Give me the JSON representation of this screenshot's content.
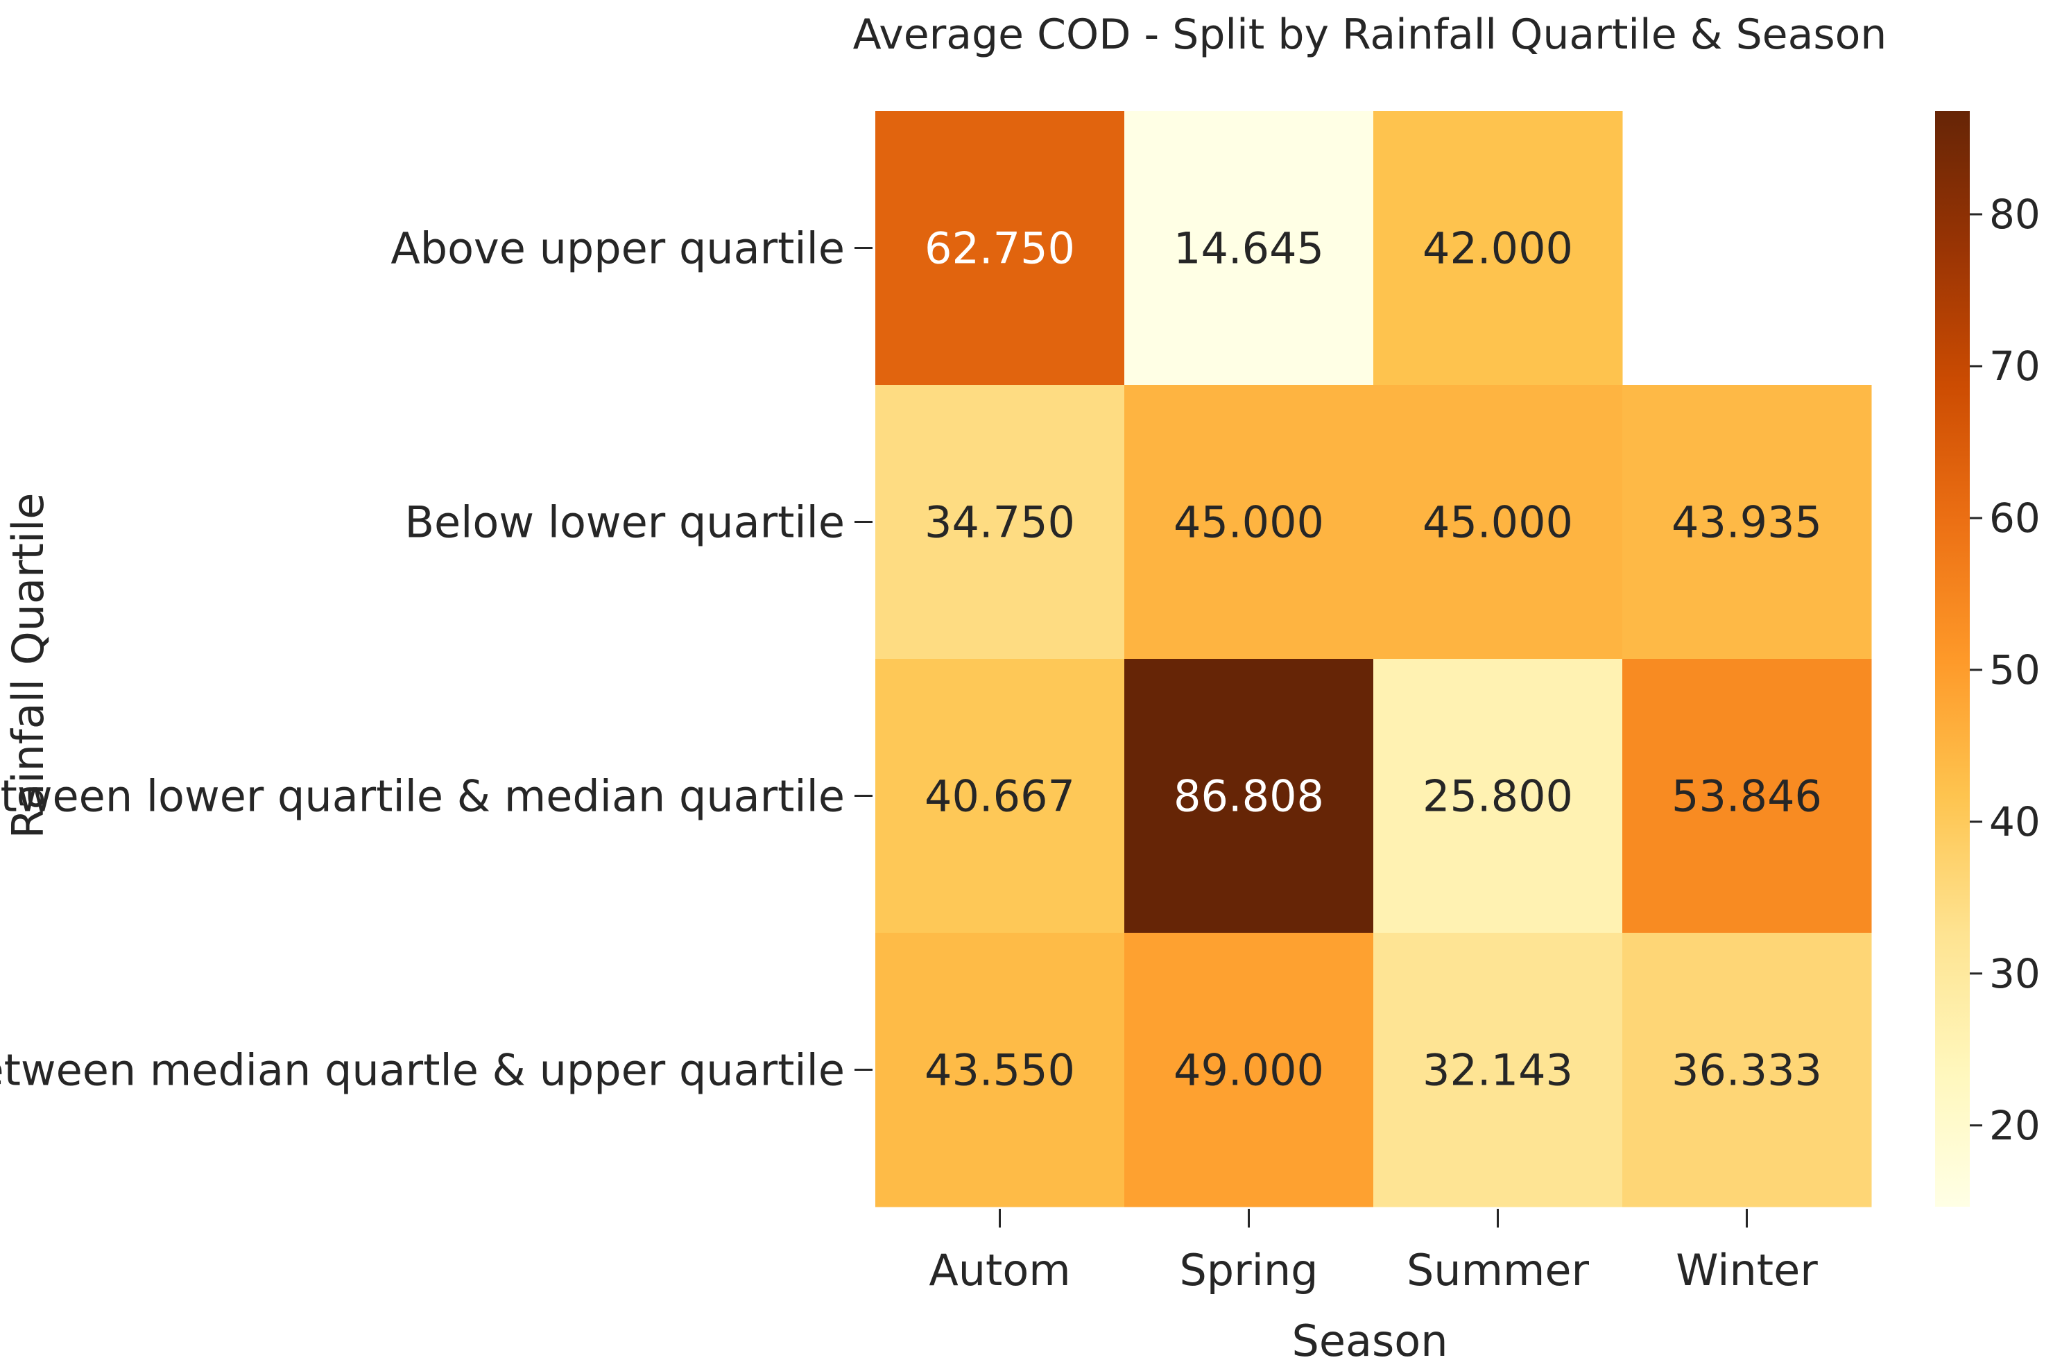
{
  "chart_data": {
    "type": "heatmap",
    "title": "Average COD - Split by Rainfall Quartile & Season",
    "xlabel": "Season",
    "ylabel": "Rainfall Quartile",
    "x_categories": [
      "Autom",
      "Spring",
      "Summer",
      "Winter"
    ],
    "y_categories": [
      "Above upper quartile",
      "Below lower quartile",
      "Between lower quartile & median quartile",
      "Between median quartle & upper quartile"
    ],
    "values": [
      [
        62.75,
        14.645,
        42.0,
        null
      ],
      [
        34.75,
        45.0,
        45.0,
        43.935
      ],
      [
        40.667,
        86.808,
        25.8,
        53.846
      ],
      [
        43.55,
        49.0,
        32.143,
        36.333
      ]
    ],
    "value_labels": [
      [
        "62.750",
        "14.645",
        "42.000",
        ""
      ],
      [
        "34.750",
        "45.000",
        "45.000",
        "43.935"
      ],
      [
        "40.667",
        "86.808",
        "25.800",
        "53.846"
      ],
      [
        "43.550",
        "49.000",
        "32.143",
        "36.333"
      ]
    ],
    "colormap": "YlOrBr",
    "vmin": 14.645,
    "vmax": 86.808,
    "colorbar_ticks": [
      20,
      30,
      40,
      50,
      60,
      70,
      80
    ],
    "colorbar_tick_labels": [
      "20",
      "30",
      "40",
      "50",
      "60",
      "70",
      "80"
    ],
    "grid": false
  }
}
